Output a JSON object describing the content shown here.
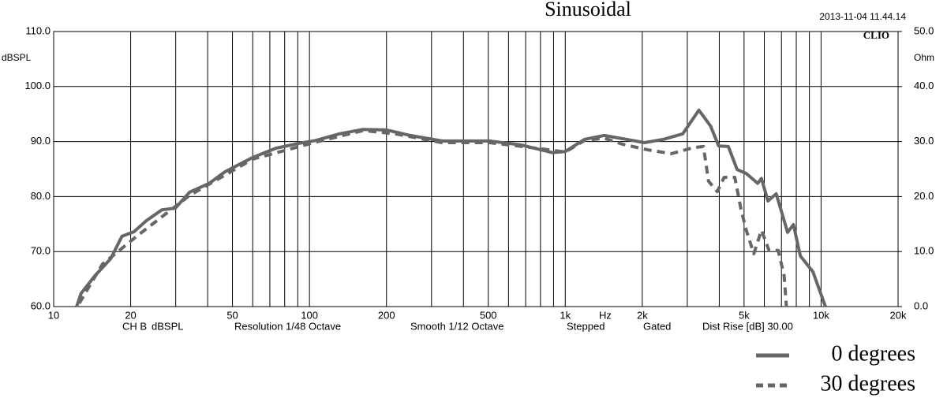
{
  "chart_data": {
    "type": "line",
    "title": "Sinusoidal",
    "timestamp": "2013-11-04 11.44.14",
    "brand": "CLIO",
    "ylabel": "dBSPL",
    "y2label": "Ohm",
    "xlabel": "Hz",
    "footer": [
      "CH B",
      "dBSPL",
      "Resolution 1/48 Octave",
      "Smooth 1/12 Octave",
      "Stepped",
      "Gated",
      "Dist Rise [dB] 30.00"
    ],
    "xscale": "log",
    "xlim": [
      10,
      20000
    ],
    "ylim": [
      60,
      110
    ],
    "y2lim": [
      0,
      50
    ],
    "xticks": [
      10,
      20,
      50,
      100,
      200,
      500,
      {
        "value": 1000,
        "label": "1k"
      },
      {
        "value": 2000,
        "label": "2k"
      },
      {
        "value": 5000,
        "label": "5k"
      },
      {
        "value": 10000,
        "label": "10k"
      },
      {
        "value": 20000,
        "label": "20k"
      }
    ],
    "xgrid": [
      30,
      40,
      60,
      70,
      80,
      90,
      300,
      400,
      600,
      700,
      800,
      900,
      3000,
      4000,
      6000,
      7000,
      8000,
      9000
    ],
    "yticks": [
      {
        "value": 60,
        "label": "60.0"
      },
      {
        "value": 70,
        "label": "70.0"
      },
      {
        "value": 80,
        "label": "80.0"
      },
      {
        "value": 90,
        "label": "90.0"
      },
      {
        "value": 100,
        "label": "100.0"
      },
      {
        "value": 110,
        "label": "110.0"
      }
    ],
    "y2ticks": [
      {
        "value": 0,
        "label": "0.0"
      },
      {
        "value": 10,
        "label": "10.0"
      },
      {
        "value": 20,
        "label": "20.0"
      },
      {
        "value": 30,
        "label": "30.0"
      },
      {
        "value": 40,
        "label": "40.0"
      },
      {
        "value": 50,
        "label": "50.0"
      }
    ],
    "grid": true,
    "series": [
      {
        "name": "0 degrees",
        "color": "#666666",
        "dashed": false,
        "x": [
          12.3,
          12.8,
          14.5,
          16.7,
          18.5,
          20.6,
          23,
          26.5,
          29.9,
          34,
          40.6,
          46.7,
          60,
          74,
          91.6,
          106,
          131,
          162,
          200,
          248,
          330,
          505,
          670,
          889,
          1000,
          1190,
          1420,
          1830,
          2040,
          2420,
          2880,
          3330,
          3700,
          3980,
          4340,
          4700,
          5100,
          5650,
          5850,
          6200,
          6680,
          7400,
          7800,
          8300,
          9300,
          10400
        ],
        "values": [
          60,
          62.4,
          65.6,
          68.7,
          72.8,
          73.6,
          75.6,
          77.6,
          77.9,
          80.8,
          82.4,
          84.5,
          87.1,
          88.8,
          89.7,
          90.2,
          91.4,
          92.2,
          92.1,
          91.1,
          90.1,
          90.1,
          89.4,
          88,
          88.2,
          90.4,
          91.1,
          90.2,
          89.8,
          90.4,
          91.4,
          95.7,
          92.8,
          89.2,
          89.1,
          84.9,
          84.2,
          82.4,
          83.3,
          79.2,
          80.5,
          73.5,
          74.9,
          69.2,
          66.3,
          60
        ]
      },
      {
        "name": "30 degrees",
        "color": "#666666",
        "dashed": true,
        "x": [
          12.6,
          15.5,
          21.4,
          34,
          60,
          106,
          162,
          216,
          330,
          505,
          770,
          1000,
          1190,
          1420,
          1680,
          2100,
          2600,
          3170,
          3470,
          3630,
          3930,
          4180,
          4600,
          4860,
          5100,
          5460,
          5850,
          6260,
          6800,
          7170,
          7320
        ],
        "values": [
          60.6,
          67.7,
          73,
          80.2,
          86.8,
          89.9,
          92,
          91.4,
          89.8,
          89.8,
          88.8,
          88.1,
          90.2,
          90.6,
          89.5,
          88.5,
          87.8,
          88.9,
          89.1,
          82.8,
          80.9,
          83.5,
          83.5,
          77.8,
          73.9,
          69.6,
          73.9,
          70.2,
          70.2,
          65.6,
          60
        ]
      }
    ]
  }
}
